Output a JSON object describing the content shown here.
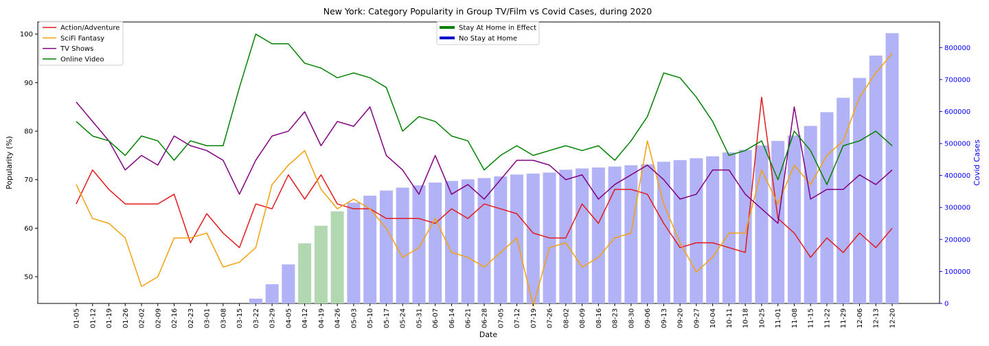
{
  "chart_data": {
    "type": "line",
    "title": "New York: Category Popularity in Group TV/Film vs Covid Cases, during 2020",
    "xlabel": "Date",
    "ylabel": "Popularity (%)",
    "y2label": "Covid Cases",
    "ylim": [
      44.5,
      102.5
    ],
    "y2lim": [
      0,
      880000
    ],
    "y_ticks": [
      50,
      60,
      70,
      80,
      90,
      100
    ],
    "y2_ticks": [
      0,
      100000,
      200000,
      300000,
      400000,
      500000,
      600000,
      700000,
      800000
    ],
    "y2_tick_labels": [
      "0",
      "100000",
      "200000",
      "300000",
      "400000",
      "500000",
      "600000",
      "700000",
      "800000"
    ],
    "categories": [
      "01-05",
      "01-12",
      "01-19",
      "01-26",
      "02-02",
      "02-09",
      "02-16",
      "02-23",
      "03-01",
      "03-08",
      "03-15",
      "03-22",
      "03-29",
      "04-05",
      "04-12",
      "04-19",
      "04-26",
      "05-03",
      "05-10",
      "05-17",
      "05-24",
      "05-31",
      "06-07",
      "06-14",
      "06-21",
      "06-28",
      "07-05",
      "07-12",
      "07-19",
      "07-26",
      "08-02",
      "08-09",
      "08-16",
      "08-23",
      "08-30",
      "09-06",
      "09-13",
      "09-20",
      "09-27",
      "10-04",
      "10-11",
      "10-18",
      "10-25",
      "11-01",
      "11-08",
      "11-15",
      "11-22",
      "11-29",
      "12-06",
      "12-13",
      "12-20"
    ],
    "series": [
      {
        "name": "Action/Adventure",
        "color": "#e31a1c",
        "values": [
          65,
          72,
          68,
          65,
          65,
          65,
          67,
          57,
          63,
          59,
          56,
          65,
          64,
          71,
          66,
          71,
          65,
          64,
          64,
          62,
          62,
          62,
          61,
          64,
          62,
          65,
          64,
          63,
          59,
          58,
          58,
          65,
          61,
          68,
          68,
          67,
          61,
          56,
          57,
          57,
          56,
          55,
          87,
          62,
          59,
          54,
          58,
          55,
          59,
          56,
          60
        ]
      },
      {
        "name": "SciFi Fantasy",
        "color": "#f5a00d",
        "values": [
          69,
          62,
          61,
          58,
          48,
          50,
          58,
          58,
          59,
          52,
          53,
          56,
          69,
          73,
          76,
          68,
          64,
          66,
          64,
          60,
          54,
          56,
          62,
          55,
          54,
          52,
          55,
          58,
          44,
          56,
          57,
          52,
          54,
          58,
          59,
          78,
          65,
          57,
          51,
          54,
          59,
          59,
          72,
          65,
          73,
          69,
          75,
          78,
          87,
          92,
          96
        ]
      },
      {
        "name": "TV Shows",
        "color": "#800080",
        "values": [
          86,
          82,
          78,
          72,
          75,
          73,
          79,
          77,
          76,
          74,
          67,
          74,
          79,
          80,
          84,
          77,
          82,
          81,
          85,
          75,
          72,
          67,
          75,
          67,
          69,
          66,
          70,
          74,
          74,
          73,
          70,
          71,
          66,
          69,
          71,
          73,
          70,
          66,
          67,
          72,
          72,
          67,
          64,
          61,
          85,
          66,
          68,
          68,
          71,
          69,
          72
        ]
      },
      {
        "name": "Online Video",
        "color": "#008000",
        "values": [
          82,
          79,
          78,
          75,
          79,
          78,
          74,
          78,
          77,
          77,
          89,
          100,
          98,
          98,
          94,
          93,
          91,
          92,
          91,
          89,
          80,
          83,
          82,
          79,
          78,
          72,
          75,
          77,
          75,
          76,
          77,
          76,
          77,
          74,
          78,
          83,
          92,
          91,
          87,
          82,
          75,
          76,
          78,
          70,
          80,
          76,
          69,
          77,
          78,
          80,
          77
        ]
      }
    ],
    "bars": {
      "name": "Covid Cases",
      "values": [
        0,
        0,
        0,
        0,
        0,
        0,
        0,
        0,
        0,
        0,
        0,
        15000,
        60000,
        122000,
        188000,
        243000,
        288000,
        315000,
        337000,
        353000,
        362000,
        369000,
        378000,
        383000,
        388000,
        392000,
        397000,
        403000,
        406000,
        409000,
        418000,
        422000,
        425000,
        428000,
        432000,
        435000,
        443000,
        448000,
        454000,
        460000,
        472000,
        480000,
        494000,
        508000,
        525000,
        555000,
        598000,
        643000,
        705000,
        775000,
        845000
      ],
      "stay_home_color": "#b2d8b2",
      "no_stay_color": "#b2b2f7",
      "stay_home_range": [
        "04-12",
        "04-26"
      ]
    },
    "legend_placement": "upper-left",
    "legend2": {
      "placement": "upper-center",
      "items": [
        {
          "label": "Stay At Home in Effect",
          "color": "#008000"
        },
        {
          "label": "No Stay at Home",
          "color": "#0000cc"
        }
      ]
    },
    "y2_color": "#0000ff",
    "grid": false
  }
}
